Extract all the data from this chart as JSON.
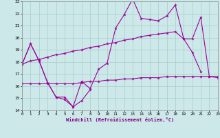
{
  "xlabel": "Windchill (Refroidissement éolien,°C)",
  "background_color": "#cce8e8",
  "grid_color": "#aacccc",
  "line_color": "#990099",
  "x": [
    0,
    1,
    2,
    3,
    4,
    5,
    6,
    7,
    8,
    9,
    10,
    11,
    12,
    13,
    14,
    15,
    16,
    17,
    18,
    19,
    20,
    21,
    22,
    23
  ],
  "line1_x": [
    0,
    1,
    2,
    3,
    4,
    5,
    6,
    7,
    8
  ],
  "line1_y": [
    17.8,
    19.5,
    18.1,
    16.3,
    15.1,
    14.9,
    14.3,
    14.8,
    15.7
  ],
  "line2_x": [
    0,
    1,
    2,
    3,
    4,
    5,
    6,
    7,
    8,
    9,
    10,
    11,
    12,
    13,
    14,
    15,
    16,
    17,
    18,
    19,
    20,
    21
  ],
  "line2_y": [
    17.8,
    19.5,
    18.1,
    16.3,
    15.1,
    15.1,
    14.3,
    16.4,
    15.8,
    17.4,
    17.9,
    20.8,
    21.9,
    23.2,
    21.6,
    21.5,
    21.4,
    21.8,
    22.7,
    19.9,
    18.8,
    17.2
  ],
  "line3_x": [
    0,
    1,
    2,
    3,
    4,
    5,
    6,
    7,
    8,
    9,
    10,
    11,
    12,
    13,
    14,
    15,
    16,
    17,
    18,
    19,
    20,
    21,
    22,
    23
  ],
  "line3_y": [
    17.8,
    18.1,
    18.2,
    18.4,
    18.6,
    18.7,
    18.9,
    19.0,
    19.2,
    19.3,
    19.5,
    19.6,
    19.8,
    19.9,
    20.1,
    20.2,
    20.3,
    20.4,
    20.5,
    19.9,
    19.9,
    21.7,
    16.8,
    16.7
  ],
  "line4_x": [
    0,
    1,
    2,
    3,
    4,
    5,
    6,
    7,
    8,
    9,
    10,
    11,
    12,
    13,
    14,
    15,
    16,
    17,
    18,
    19,
    20,
    21,
    22,
    23
  ],
  "line4_y": [
    16.2,
    16.2,
    16.2,
    16.2,
    16.2,
    16.2,
    16.2,
    16.3,
    16.4,
    16.4,
    16.5,
    16.5,
    16.6,
    16.6,
    16.7,
    16.7,
    16.7,
    16.8,
    16.8,
    16.8,
    16.8,
    16.8,
    16.8,
    16.8
  ],
  "ylim": [
    14,
    23
  ],
  "xlim": [
    0,
    23
  ],
  "yticks": [
    14,
    15,
    16,
    17,
    18,
    19,
    20,
    21,
    22,
    23
  ],
  "xticks": [
    0,
    1,
    2,
    3,
    4,
    5,
    6,
    7,
    8,
    9,
    10,
    11,
    12,
    13,
    14,
    15,
    16,
    17,
    18,
    19,
    20,
    21,
    22,
    23
  ]
}
